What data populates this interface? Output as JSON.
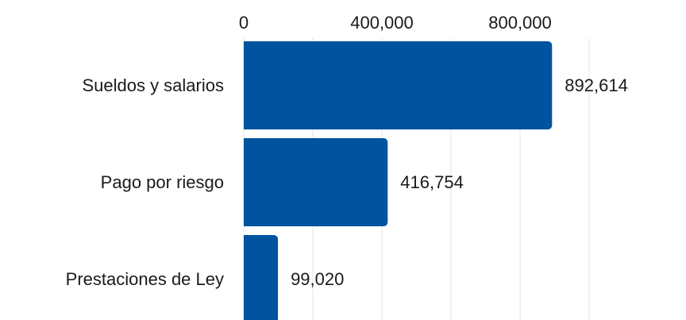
{
  "chart_data": {
    "type": "bar",
    "orientation": "horizontal",
    "categories": [
      "Sueldos y salarios",
      "Pago por riesgo",
      "Prestaciones de Ley"
    ],
    "values": [
      892614,
      416754,
      99020
    ],
    "value_labels": [
      "892,614",
      "416,754",
      "99,020"
    ],
    "x_ticks": [
      0,
      400000,
      800000
    ],
    "x_tick_labels": [
      "0",
      "400,000",
      "800,000"
    ],
    "xlim": [
      0,
      1150000
    ],
    "axis_position": "top",
    "title": "",
    "xlabel": "",
    "ylabel": "",
    "grid": true,
    "bar_color": "#00539f"
  }
}
